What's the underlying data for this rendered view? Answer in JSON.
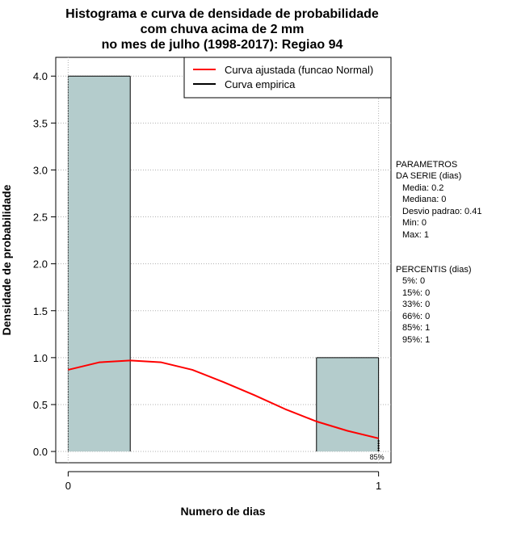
{
  "chart_data": {
    "type": "bar",
    "title_lines": [
      "Histograma e curva de densidade de probabilidade",
      "com chuva acima de 2 mm",
      "no mes de julho (1998-2017): Regiao 94"
    ],
    "xlabel": "Numero de dias",
    "ylabel": "Densidade de probabilidade",
    "xlim": [
      -0.04,
      1.04
    ],
    "ylim": [
      -0.12,
      4.2
    ],
    "x_ticks": [
      0,
      1
    ],
    "x_tick_labels": [
      "0",
      "1"
    ],
    "y_ticks": [
      0.0,
      0.5,
      1.0,
      1.5,
      2.0,
      2.5,
      3.0,
      3.5,
      4.0
    ],
    "y_tick_labels": [
      "0.0",
      "0.5",
      "1.0",
      "1.5",
      "2.0",
      "2.5",
      "3.0",
      "3.5",
      "4.0"
    ],
    "grid": true,
    "bars": [
      {
        "x0": 0.0,
        "x1": 0.2,
        "density": 4.0
      },
      {
        "x0": 0.8,
        "x1": 1.0,
        "density": 1.0
      }
    ],
    "bar_color": "#b4cccc",
    "series": [
      {
        "name": "Curva ajustada (funcao Normal)",
        "color": "#ff0000",
        "x": [
          0.0,
          0.1,
          0.2,
          0.3,
          0.4,
          0.5,
          0.6,
          0.7,
          0.8,
          0.9,
          1.0
        ],
        "y": [
          0.87,
          0.95,
          0.97,
          0.95,
          0.87,
          0.74,
          0.6,
          0.45,
          0.32,
          0.22,
          0.14
        ]
      },
      {
        "name": "Curva empirica",
        "color": "#000000",
        "x": [],
        "y": []
      }
    ],
    "legend_position": "top-right",
    "percentile_marker": {
      "x": 1.0,
      "label": "85%"
    },
    "parameters": {
      "heading": [
        "PARAMETROS",
        "DA SERIE (dias)"
      ],
      "lines": [
        "Media: 0.2",
        "Mediana: 0",
        "Desvio padrao: 0.41",
        "Min: 0",
        "Max: 1"
      ]
    },
    "percentiles": {
      "heading": "PERCENTIS (dias)",
      "lines": [
        "5%: 0",
        "15%: 0",
        "33%: 0",
        "66%: 0",
        "85%: 1",
        "95%: 1"
      ]
    }
  }
}
